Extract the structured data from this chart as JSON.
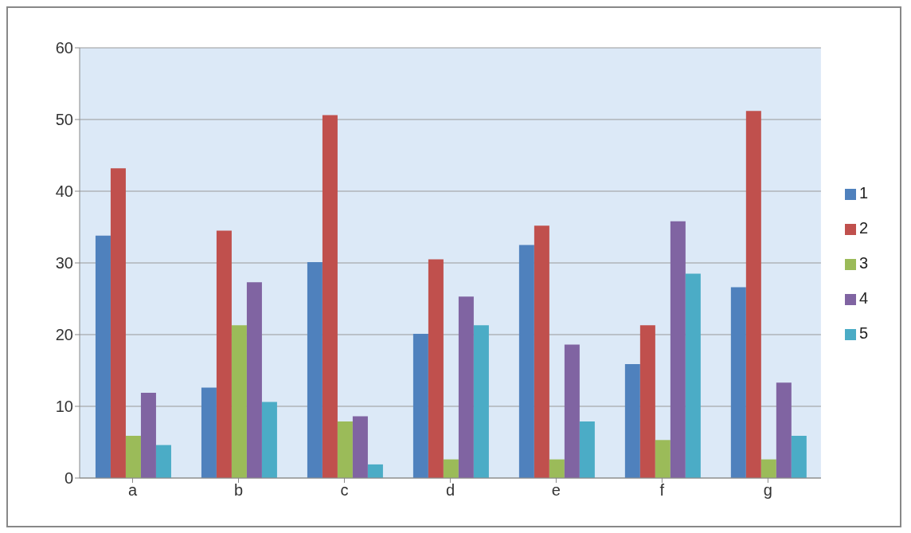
{
  "chart_data": {
    "type": "bar",
    "categories": [
      "a",
      "b",
      "c",
      "d",
      "e",
      "f",
      "g"
    ],
    "series": [
      {
        "name": "1",
        "color": "#4f81bd",
        "values": [
          33.8,
          12.6,
          30.1,
          20.1,
          32.5,
          15.9,
          26.6
        ]
      },
      {
        "name": "2",
        "color": "#c0504d",
        "values": [
          43.2,
          34.5,
          50.6,
          30.5,
          35.2,
          21.3,
          51.2
        ]
      },
      {
        "name": "3",
        "color": "#9bbb59",
        "values": [
          5.9,
          21.3,
          7.9,
          2.6,
          2.6,
          5.3,
          2.6
        ]
      },
      {
        "name": "4",
        "color": "#8064a2",
        "values": [
          11.9,
          27.3,
          8.6,
          25.3,
          18.6,
          35.8,
          13.3
        ]
      },
      {
        "name": "5",
        "color": "#4bacc6",
        "values": [
          4.6,
          10.6,
          1.9,
          21.3,
          7.9,
          28.5,
          5.9
        ]
      }
    ],
    "ylim": [
      0,
      60
    ],
    "yticks": [
      0,
      10,
      20,
      30,
      40,
      50,
      60
    ],
    "grid": "y",
    "legend": "right"
  }
}
